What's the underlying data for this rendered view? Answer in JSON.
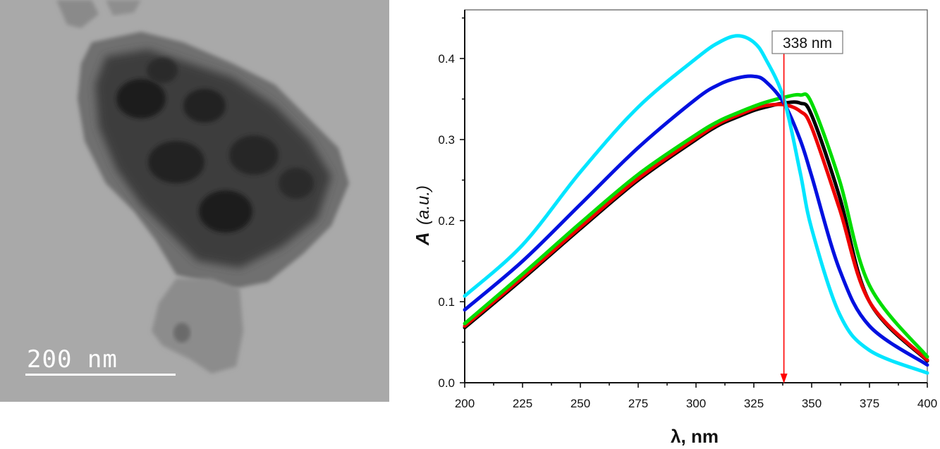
{
  "micrograph": {
    "scale_label": "200 nm",
    "background": "#a9a9a9"
  },
  "chart_data": {
    "type": "line",
    "title": "",
    "xlabel": "λ, nm",
    "ylabel_bold": "A",
    "ylabel_italic": "(a.u.)",
    "xlim": [
      200,
      400
    ],
    "ylim": [
      0,
      0.46
    ],
    "x_ticks": [
      "200",
      "225",
      "250",
      "275",
      "300",
      "325",
      "350",
      "375",
      "400"
    ],
    "y_ticks": [
      "0.0",
      "0.1",
      "0.2",
      "0.3",
      "0.4"
    ],
    "grid": false,
    "legend": "none",
    "annotation": {
      "label": "338 nm",
      "x": 338,
      "color": "#ff0000"
    },
    "x": [
      200,
      225,
      250,
      275,
      300,
      310,
      318,
      325,
      330,
      338,
      345,
      350,
      362,
      375,
      400
    ],
    "series": [
      {
        "name": "cyan",
        "color": "#00e5ff",
        "values": [
          0.107,
          0.17,
          0.26,
          0.34,
          0.4,
          0.42,
          0.428,
          0.42,
          0.4,
          0.35,
          0.26,
          0.19,
          0.085,
          0.04,
          0.012
        ]
      },
      {
        "name": "blue",
        "color": "#0010e0",
        "values": [
          0.09,
          0.15,
          0.22,
          0.29,
          0.35,
          0.368,
          0.376,
          0.378,
          0.372,
          0.345,
          0.3,
          0.255,
          0.14,
          0.07,
          0.022
        ]
      },
      {
        "name": "black",
        "color": "#000000",
        "values": [
          0.068,
          0.128,
          0.19,
          0.25,
          0.3,
          0.318,
          0.328,
          0.336,
          0.34,
          0.345,
          0.345,
          0.33,
          0.23,
          0.1,
          0.027
        ]
      },
      {
        "name": "red",
        "color": "#ee0000",
        "values": [
          0.07,
          0.13,
          0.192,
          0.252,
          0.302,
          0.32,
          0.33,
          0.338,
          0.342,
          0.343,
          0.335,
          0.315,
          0.215,
          0.1,
          0.028
        ]
      },
      {
        "name": "green",
        "color": "#00dd00",
        "values": [
          0.073,
          0.134,
          0.197,
          0.257,
          0.306,
          0.323,
          0.333,
          0.341,
          0.346,
          0.352,
          0.355,
          0.345,
          0.25,
          0.12,
          0.032
        ]
      }
    ]
  }
}
